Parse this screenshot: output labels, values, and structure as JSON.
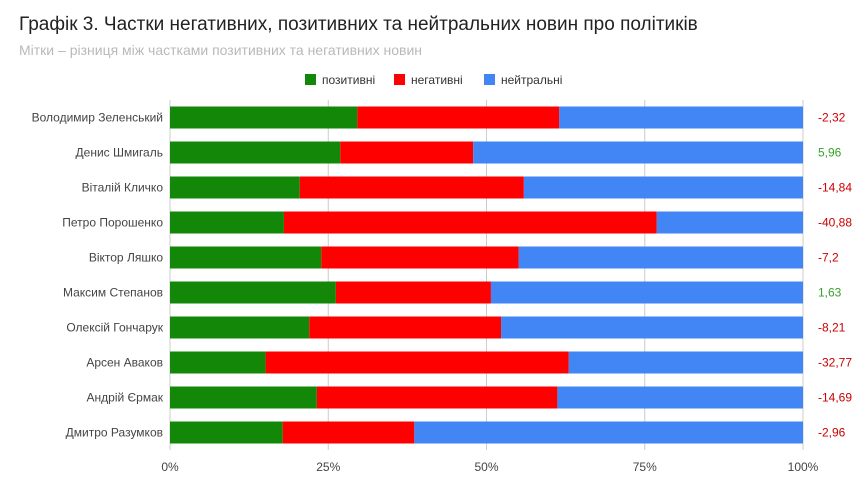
{
  "chart_data": {
    "type": "bar",
    "orientation": "horizontal",
    "stacked": "percent",
    "title": "Графік 3. Частки негативних, позитивних та нейтральних новин про політиків",
    "subtitle": "Мітки – різниця між частками позитивних та негативних новин",
    "legend_position": "top",
    "grid": true,
    "xlim": [
      0,
      100
    ],
    "x_ticks": [
      "0%",
      "25%",
      "50%",
      "75%",
      "100%"
    ],
    "categories": [
      "Володимир Зеленський",
      "Денис Шмигаль",
      "Віталій Кличко",
      "Петро Порошенко",
      "Віктор Ляшко",
      "Максим Степанов",
      "Олексій Гончарук",
      "Арсен Аваков",
      "Андрій Єрмак",
      "Дмитро Разумков"
    ],
    "series": [
      {
        "name": "позитивні",
        "color": "#138808",
        "values": [
          29.6,
          26.9,
          20.5,
          18.0,
          23.9,
          26.2,
          22.0,
          15.1,
          23.2,
          17.8
        ]
      },
      {
        "name": "негативні",
        "color": "#ff0000",
        "values": [
          31.9,
          21.0,
          35.4,
          58.9,
          31.2,
          24.5,
          30.3,
          47.9,
          38.0,
          20.8
        ]
      },
      {
        "name": "нейтральні",
        "color": "#4285f4",
        "values": [
          38.5,
          52.1,
          44.1,
          23.1,
          44.9,
          49.3,
          47.7,
          37.0,
          38.8,
          61.4
        ]
      }
    ],
    "data_labels": [
      "-2,32",
      "5,96",
      "-14,84",
      "-40,88",
      "-7,2",
      "1,63",
      "-8,21",
      "-32,77",
      "-14,69",
      "-2,96"
    ],
    "label_colors": {
      "negative": "#cc0000",
      "positive": "#38a02a"
    }
  }
}
